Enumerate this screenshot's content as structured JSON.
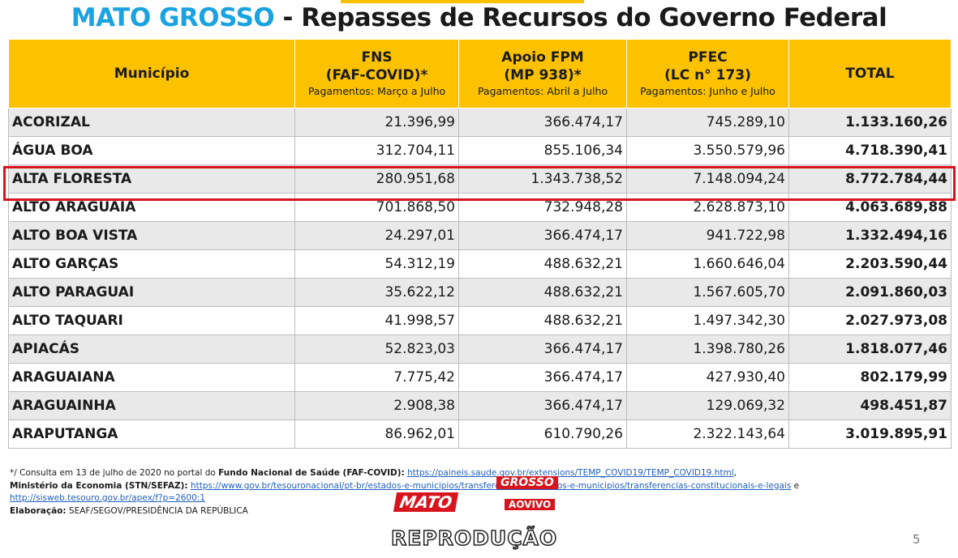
{
  "header": {
    "title_state": "MATO GROSSO",
    "title_rest": " - Repasses de Recursos do Governo Federal"
  },
  "table": {
    "columns": [
      {
        "name": "Município"
      },
      {
        "name": "FNS",
        "detail": "(FAF-COVID)*",
        "period": "Pagamentos: Março a Julho"
      },
      {
        "name": "Apoio FPM",
        "detail": "(MP 938)*",
        "period": "Pagamentos: Abril a Julho"
      },
      {
        "name": "PFEC",
        "detail": "(LC n° 173)",
        "period": "Pagamentos: Junho e Julho"
      },
      {
        "name": "TOTAL"
      }
    ],
    "rows": [
      [
        "ACORIZAL",
        "21.396,99",
        "366.474,17",
        "745.289,10",
        "1.133.160,26"
      ],
      [
        "ÁGUA BOA",
        "312.704,11",
        "855.106,34",
        "3.550.579,96",
        "4.718.390,41"
      ],
      [
        "ALTA FLORESTA",
        "280.951,68",
        "1.343.738,52",
        "7.148.094,24",
        "8.772.784,44"
      ],
      [
        "ALTO ARAGUAIA",
        "701.868,50",
        "732.948,28",
        "2.628.873,10",
        "4.063.689,88"
      ],
      [
        "ALTO BOA VISTA",
        "24.297,01",
        "366.474,17",
        "941.722,98",
        "1.332.494,16"
      ],
      [
        "ALTO GARÇAS",
        "54.312,19",
        "488.632,21",
        "1.660.646,04",
        "2.203.590,44"
      ],
      [
        "ALTO PARAGUAI",
        "35.622,12",
        "488.632,21",
        "1.567.605,70",
        "2.091.860,03"
      ],
      [
        "ALTO TAQUARI",
        "41.998,57",
        "488.632,21",
        "1.497.342,30",
        "2.027.973,08"
      ],
      [
        "APIACÁS",
        "52.823,03",
        "366.474,17",
        "1.398.780,26",
        "1.818.077,46"
      ],
      [
        "ARAGUAIANA",
        "7.775,42",
        "366.474,17",
        "427.930,40",
        "802.179,99"
      ],
      [
        "ARAGUAINHA",
        "2.908,38",
        "366.474,17",
        "129.069,32",
        "498.451,87"
      ],
      [
        "ARAPUTANGA",
        "86.962,01",
        "610.790,26",
        "2.322.143,64",
        "3.019.895,91"
      ]
    ]
  },
  "notes": {
    "line1_text": "*/ Consulta em 13 de julho de 2020 no portal do ",
    "line1_bold": "Fundo Nacional de Saúde (FAF-COVID):",
    "line1_link": "https://paineis.saude.gov.br/extensions/TEMP_COVID19/TEMP_COVID19.html",
    "line1_end": ",",
    "line2_bold": "Ministério da Economia (STN/SEFAZ):",
    "line2_link": "https://www.gov.br/tesouronacional/pt-br/estados-e-municipios/transferencias-a-estados-e-municipios/transferencias-constitucionais-e-legais",
    "line2_end": " e",
    "line3_link": "http://sisweb.tesouro.gov.br/apex/f?p=2600:1",
    "line4_bold": "Elaboração:",
    "line4_text": " SEAF/SEGOV/PRESIDÊNCIA DA REPÚBLICA"
  },
  "page_number": "5",
  "watermark": {
    "brand_1": "MATO",
    "brand_2": "GROSSO",
    "brand_3": "AOVIVO",
    "label": "REPRODUÇÃO"
  }
}
